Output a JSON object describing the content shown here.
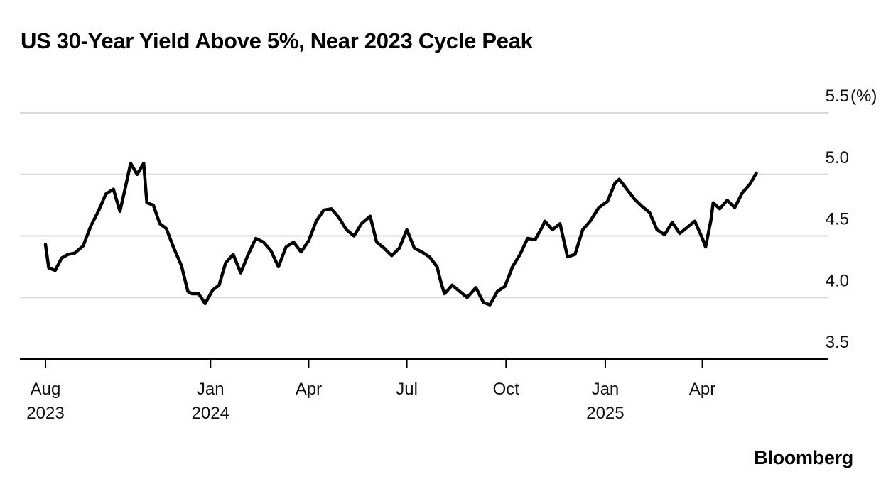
{
  "title": "US 30-Year Yield Above 5%, Near 2023 Cycle Peak",
  "source_brand": "Bloomberg",
  "chart_data": {
    "type": "line",
    "title": "US 30-Year Yield Above 5%, Near 2023 Cycle Peak",
    "y_unit": "(%)",
    "ylim": [
      3.5,
      5.5
    ],
    "y_ticks": [
      "5.5",
      "5.0",
      "4.5",
      "4.0",
      "3.5"
    ],
    "y_tick_values": [
      5.5,
      5.0,
      4.5,
      4.0,
      3.5
    ],
    "y_grid": true,
    "x_range": [
      "2023-08-01",
      "2025-05-22"
    ],
    "x_ticks": [
      {
        "date": "2023-08-01",
        "label": "Aug",
        "year": "2023"
      },
      {
        "date": "2024-01-01",
        "label": "Jan",
        "year": "2024"
      },
      {
        "date": "2024-04-01",
        "label": "Apr",
        "year": ""
      },
      {
        "date": "2024-07-01",
        "label": "Jul",
        "year": ""
      },
      {
        "date": "2024-10-01",
        "label": "Oct",
        "year": ""
      },
      {
        "date": "2025-01-01",
        "label": "Jan",
        "year": "2025"
      },
      {
        "date": "2025-04-01",
        "label": "Apr",
        "year": ""
      }
    ],
    "line_color": "#000000",
    "series": [
      {
        "x": [
          "2023-08-01",
          "2023-08-04",
          "2023-08-10",
          "2023-08-16",
          "2023-08-22",
          "2023-08-28",
          "2023-09-05",
          "2023-09-12",
          "2023-09-19",
          "2023-09-26",
          "2023-10-03",
          "2023-10-09",
          "2023-10-13",
          "2023-10-19",
          "2023-10-25",
          "2023-10-31",
          "2023-11-03",
          "2023-11-09",
          "2023-11-15",
          "2023-11-21",
          "2023-11-28",
          "2023-12-05",
          "2023-12-11",
          "2023-12-15",
          "2023-12-21",
          "2023-12-27",
          "2024-01-03",
          "2024-01-09",
          "2024-01-15",
          "2024-01-22",
          "2024-01-29",
          "2024-02-05",
          "2024-02-12",
          "2024-02-19",
          "2024-02-26",
          "2024-03-04",
          "2024-03-11",
          "2024-03-18",
          "2024-03-25",
          "2024-04-01",
          "2024-04-08",
          "2024-04-15",
          "2024-04-22",
          "2024-04-29",
          "2024-05-06",
          "2024-05-13",
          "2024-05-20",
          "2024-05-28",
          "2024-06-03",
          "2024-06-10",
          "2024-06-17",
          "2024-06-24",
          "2024-07-01",
          "2024-07-08",
          "2024-07-15",
          "2024-07-22",
          "2024-07-29",
          "2024-08-02",
          "2024-08-05",
          "2024-08-12",
          "2024-08-19",
          "2024-08-26",
          "2024-09-03",
          "2024-09-10",
          "2024-09-16",
          "2024-09-23",
          "2024-09-30",
          "2024-10-07",
          "2024-10-14",
          "2024-10-21",
          "2024-10-28",
          "2024-11-04",
          "2024-11-06",
          "2024-11-13",
          "2024-11-20",
          "2024-11-27",
          "2024-12-04",
          "2024-12-11",
          "2024-12-18",
          "2024-12-26",
          "2025-01-03",
          "2025-01-10",
          "2025-01-14",
          "2025-01-21",
          "2025-01-28",
          "2025-02-04",
          "2025-02-11",
          "2025-02-18",
          "2025-02-25",
          "2025-03-04",
          "2025-03-11",
          "2025-03-18",
          "2025-03-25",
          "2025-04-01",
          "2025-04-04",
          "2025-04-09",
          "2025-04-11",
          "2025-04-17",
          "2025-04-24",
          "2025-05-01",
          "2025-05-08",
          "2025-05-15",
          "2025-05-21"
        ],
        "y": [
          4.43,
          4.24,
          4.22,
          4.32,
          4.35,
          4.36,
          4.42,
          4.58,
          4.7,
          4.84,
          4.88,
          4.7,
          4.85,
          5.09,
          5.0,
          5.09,
          4.77,
          4.75,
          4.6,
          4.56,
          4.4,
          4.26,
          4.05,
          4.03,
          4.03,
          3.95,
          4.06,
          4.1,
          4.28,
          4.35,
          4.2,
          4.35,
          4.48,
          4.45,
          4.38,
          4.25,
          4.41,
          4.45,
          4.37,
          4.46,
          4.62,
          4.71,
          4.72,
          4.65,
          4.55,
          4.5,
          4.6,
          4.66,
          4.45,
          4.4,
          4.34,
          4.4,
          4.55,
          4.4,
          4.37,
          4.33,
          4.25,
          4.11,
          4.03,
          4.1,
          4.05,
          4.0,
          4.08,
          3.96,
          3.94,
          4.05,
          4.09,
          4.25,
          4.35,
          4.48,
          4.47,
          4.58,
          4.62,
          4.55,
          4.6,
          4.33,
          4.35,
          4.55,
          4.62,
          4.73,
          4.78,
          4.93,
          4.96,
          4.88,
          4.8,
          4.74,
          4.69,
          4.55,
          4.51,
          4.61,
          4.52,
          4.57,
          4.62,
          4.48,
          4.41,
          4.63,
          4.77,
          4.72,
          4.79,
          4.73,
          4.85,
          4.92,
          5.01
        ]
      }
    ]
  }
}
